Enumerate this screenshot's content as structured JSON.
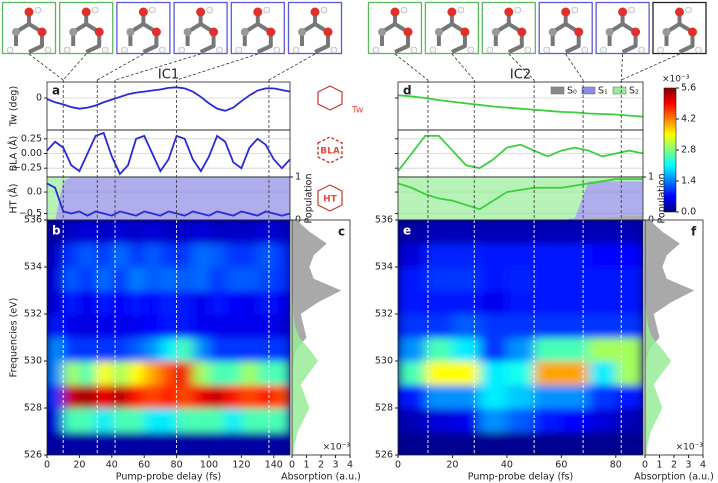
{
  "chart_data": [
    {
      "type": "line",
      "title": "IC1",
      "label": "a",
      "ylabel": "Tw (deg)",
      "snapshot_colors": [
        "#5cb85c",
        "#5cb85c",
        "#5b5bd6",
        "#5b5bd6",
        "#5b5bd6",
        "#5b5bd6"
      ],
      "x": [
        0,
        5,
        10,
        15,
        20,
        25,
        30,
        35,
        40,
        45,
        50,
        55,
        60,
        65,
        70,
        75,
        80,
        85,
        90,
        95,
        100,
        105,
        110,
        115,
        120,
        125,
        130,
        135,
        140,
        145,
        150
      ],
      "xlim": [
        0,
        150
      ],
      "ylim": [
        -60,
        30
      ],
      "yticks": [
        0
      ],
      "grid": true,
      "series": [
        {
          "color": "#2a2ad8",
          "values": [
            -2,
            -8,
            -12,
            -17,
            -20,
            -18,
            -14,
            -8,
            -3,
            2,
            7,
            10,
            12,
            14,
            16,
            19,
            20,
            18,
            12,
            2,
            -10,
            -20,
            -24,
            -18,
            -6,
            5,
            14,
            18,
            18,
            15,
            12
          ]
        }
      ]
    },
    {
      "type": "line",
      "ylabel": "BLA (Å)",
      "x": [
        0,
        5,
        10,
        15,
        20,
        25,
        30,
        35,
        40,
        45,
        50,
        55,
        60,
        65,
        70,
        75,
        80,
        85,
        90,
        95,
        100,
        105,
        110,
        115,
        120,
        125,
        130,
        135,
        140,
        145,
        150
      ],
      "xlim": [
        0,
        150
      ],
      "ylim": [
        -0.4,
        0.4
      ],
      "yticks": [
        0.25,
        {
          "value": 0,
          "label": "0.00"
        },
        {
          "value": -0.25,
          "label": "−0.25"
        }
      ],
      "grid": true,
      "series": [
        {
          "color": "#2a2ad8",
          "values": [
            0.05,
            0.2,
            0.1,
            -0.2,
            -0.3,
            0,
            0.3,
            0.35,
            -0.05,
            -0.35,
            -0.2,
            0.25,
            0.3,
            0,
            -0.3,
            -0.1,
            0.3,
            0.25,
            -0.1,
            -0.3,
            -0.05,
            0.3,
            0.2,
            -0.15,
            -0.25,
            0.1,
            0.25,
            0.15,
            -0.1,
            -0.25,
            -0.1
          ]
        }
      ]
    },
    {
      "type": "line",
      "ylabel": "HT (Å)",
      "y2label": "Population",
      "x": [
        0,
        5,
        10,
        15,
        20,
        25,
        30,
        35,
        40,
        45,
        50,
        55,
        60,
        65,
        70,
        75,
        80,
        85,
        90,
        95,
        100,
        105,
        110,
        115,
        120,
        125,
        130,
        135,
        140,
        145,
        150
      ],
      "xlim": [
        0,
        150
      ],
      "ylim": [
        -0.65,
        0.35
      ],
      "yticks": [
        {
          "value": 0,
          "label": "0.0"
        },
        {
          "value": -0.5,
          "label": "−0.5"
        }
      ],
      "y2lim": [
        0,
        1
      ],
      "y2ticks": [
        0,
        1
      ],
      "grid": true,
      "series": [
        {
          "color": "#2a2ad8",
          "values": [
            0.2,
            0.1,
            -0.45,
            -0.5,
            -0.45,
            -0.55,
            -0.45,
            -0.5,
            -0.55,
            -0.45,
            -0.5,
            -0.55,
            -0.45,
            -0.5,
            -0.55,
            -0.45,
            -0.5,
            -0.55,
            -0.45,
            -0.5,
            -0.55,
            -0.45,
            -0.5,
            -0.55,
            -0.45,
            -0.5,
            -0.55,
            -0.45,
            -0.5,
            -0.55,
            -0.5
          ]
        },
        {
          "color": "#8c8ce6",
          "axis": "y2",
          "values": [
            0,
            0,
            0.9,
            1,
            1,
            1,
            1,
            1,
            1,
            1,
            1,
            1,
            1,
            1,
            1,
            1,
            1,
            1,
            1,
            1,
            1,
            1,
            1,
            1,
            1,
            1,
            1,
            1,
            1,
            1,
            1
          ]
        },
        {
          "color": "#98ec98",
          "axis": "y2",
          "values": [
            1,
            1,
            0.1,
            0,
            0,
            0,
            0,
            0,
            0,
            0,
            0,
            0,
            0,
            0,
            0,
            0,
            0,
            0,
            0,
            0,
            0,
            0,
            0,
            0,
            0,
            0,
            0,
            0,
            0,
            0,
            0
          ]
        }
      ]
    },
    {
      "type": "heatmap",
      "label": "b",
      "ylabel": "Frequencies (eV)",
      "xlabel": "Pump-probe delay (fs)",
      "xlim": [
        0,
        150
      ],
      "xticks": [
        0,
        20,
        40,
        60,
        80,
        100,
        120,
        140
      ],
      "ylim": [
        526,
        536
      ],
      "yticks": [
        526,
        528,
        530,
        532,
        534,
        536
      ],
      "markers": [
        10,
        31,
        42,
        80,
        137
      ],
      "xbins": [
        0,
        10,
        20,
        30,
        40,
        50,
        60,
        70,
        80,
        90,
        100,
        110,
        120,
        130,
        140,
        150
      ],
      "ybins": [
        526,
        527,
        528,
        529,
        530,
        531,
        532,
        533,
        534,
        535,
        536
      ],
      "values": [
        [
          0.2,
          0.2,
          0.2,
          0.2,
          0.2,
          0.2,
          0.2,
          0.2,
          0.2,
          0.2,
          0.2,
          0.2,
          0.2,
          0.2,
          0.2
        ],
        [
          0.5,
          2.5,
          2.5,
          2,
          2.5,
          2.5,
          2,
          2,
          2.5,
          2.5,
          2.5,
          2,
          2.5,
          2.5,
          2.5
        ],
        [
          1,
          5.2,
          5.4,
          5,
          5.3,
          4.8,
          4.5,
          4.8,
          4.5,
          5,
          5.2,
          4.8,
          4.5,
          4.8,
          4.5
        ],
        [
          1.5,
          3,
          2.5,
          3.5,
          3,
          3.5,
          4,
          4.5,
          5,
          3,
          2.5,
          2.5,
          3,
          2.5,
          2.5
        ],
        [
          1.5,
          1,
          1,
          1,
          1,
          1.2,
          1.5,
          2,
          2.5,
          1.5,
          1,
          1,
          1,
          1,
          1
        ],
        [
          0.8,
          0.6,
          0.5,
          0.6,
          0.6,
          0.6,
          0.7,
          0.8,
          0.8,
          0.6,
          0.6,
          0.6,
          0.6,
          0.6,
          0.5
        ],
        [
          0.5,
          0.8,
          0.6,
          0.8,
          0.7,
          0.8,
          0.7,
          0.9,
          0.8,
          0.6,
          0.8,
          0.7,
          0.6,
          0.8,
          0.6
        ],
        [
          0.5,
          1.2,
          1,
          1.3,
          1,
          1.4,
          1.2,
          1.3,
          1.2,
          1.3,
          1,
          1.2,
          1.2,
          1.1,
          1
        ],
        [
          0.4,
          1,
          1.2,
          1,
          1.3,
          1,
          1.2,
          1,
          1,
          1.3,
          1.2,
          1,
          1,
          1.2,
          1
        ],
        [
          0.2,
          0.4,
          0.5,
          0.4,
          0.5,
          0.4,
          0.5,
          0.4,
          0.4,
          0.5,
          0.4,
          0.4,
          0.4,
          0.5,
          0.4
        ]
      ]
    },
    {
      "type": "area",
      "label": "c",
      "xlabel": "Absorption (a.u.)",
      "scale_label": "×10⁻³",
      "xlim": [
        0,
        4
      ],
      "xticks": [
        0,
        1,
        2,
        3,
        4
      ],
      "ylim": [
        526,
        536
      ],
      "y": [
        526,
        526.5,
        527,
        527.5,
        528,
        528.5,
        529,
        529.5,
        530,
        530.5,
        531,
        531.5,
        532,
        532.5,
        533,
        533.5,
        534,
        534.5,
        535,
        535.5,
        536
      ],
      "series": [
        {
          "color": "#9a9a9a",
          "values": [
            0,
            0,
            0,
            0,
            0,
            0,
            0,
            0,
            0.1,
            0.3,
            1,
            0.8,
            0.6,
            1.8,
            3.4,
            1.5,
            1.2,
            1.5,
            2.4,
            1.2,
            0.3
          ]
        },
        {
          "color": "#98ec98",
          "values": [
            0.1,
            0.2,
            0.4,
            0.8,
            1.2,
            0.9,
            0.6,
            1.2,
            1.8,
            1.2,
            0.5,
            0.2,
            0.1,
            0.05,
            0,
            0,
            0,
            0,
            0,
            0,
            0
          ]
        }
      ]
    },
    {
      "type": "line",
      "title": "IC2",
      "label": "d",
      "snapshot_colors": [
        "#5cb85c",
        "#5cb85c",
        "#5cb85c",
        "#5b5bd6",
        "#5b5bd6",
        "#222222"
      ],
      "x": [
        0,
        5,
        10,
        15,
        20,
        25,
        30,
        35,
        40,
        45,
        50,
        55,
        60,
        65,
        70,
        75,
        80,
        85,
        90
      ],
      "xlim": [
        0,
        90
      ],
      "ylim": [
        -60,
        30
      ],
      "yticks": [
        0
      ],
      "ytick_labels": false,
      "grid": true,
      "series": [
        {
          "color": "#3ccf3c",
          "values": [
            5,
            3,
            0,
            -4,
            -7,
            -10,
            -13,
            -16,
            -18,
            -20,
            -22,
            -24,
            -26,
            -27,
            -29,
            -30,
            -31,
            -33,
            -35
          ]
        }
      ]
    },
    {
      "type": "line",
      "x": [
        0,
        5,
        10,
        15,
        20,
        25,
        30,
        35,
        40,
        45,
        50,
        55,
        60,
        65,
        70,
        75,
        80,
        85,
        90
      ],
      "xlim": [
        0,
        90
      ],
      "ylim": [
        -0.4,
        0.4
      ],
      "yticks": [
        0.25,
        0,
        -0.25
      ],
      "ytick_labels": false,
      "grid": true,
      "series": [
        {
          "color": "#3ccf3c",
          "values": [
            -0.3,
            0,
            0.3,
            0.3,
            0.05,
            -0.2,
            -0.25,
            -0.1,
            0.1,
            0.15,
            0.05,
            -0.05,
            0.05,
            0.1,
            0.05,
            -0.05,
            0,
            0.05,
            0
          ]
        }
      ]
    },
    {
      "type": "line",
      "y2label": "Population",
      "legend": "upper right",
      "x": [
        0,
        5,
        10,
        15,
        20,
        25,
        30,
        35,
        40,
        45,
        50,
        55,
        60,
        65,
        70,
        75,
        80,
        85,
        90
      ],
      "xlim": [
        0,
        90
      ],
      "ylim": [
        -0.65,
        0.35
      ],
      "yticks": [
        0,
        -0.5
      ],
      "ytick_labels": false,
      "y2lim": [
        0,
        1
      ],
      "y2ticks": [
        0,
        1
      ],
      "grid": true,
      "series": [
        {
          "color": "#3ccf3c",
          "values": [
            0.2,
            0.1,
            -0.05,
            -0.15,
            -0.2,
            -0.3,
            -0.4,
            -0.2,
            0,
            0.05,
            0.1,
            0.1,
            0.1,
            0.15,
            0.2,
            0.25,
            0.3,
            0.3,
            0.3
          ]
        },
        {
          "name": "S₀",
          "color": "#8a8a8a",
          "axis": "y2",
          "values": [
            0,
            0,
            0,
            0,
            0,
            0,
            0,
            0,
            0,
            0,
            0,
            0,
            0,
            0,
            0.05,
            0.06,
            0.08,
            0.1,
            0.1
          ]
        },
        {
          "name": "S₁",
          "color": "#8c8ce6",
          "axis": "y2",
          "values": [
            0,
            0,
            0,
            0,
            0,
            0,
            0,
            0,
            0,
            0,
            0,
            0,
            0,
            0.05,
            0.85,
            0.84,
            0.82,
            0.8,
            0.8
          ]
        },
        {
          "name": "S₂",
          "color": "#98ec98",
          "axis": "y2",
          "values": [
            1,
            1,
            1,
            1,
            1,
            1,
            1,
            1,
            1,
            1,
            1,
            1,
            1,
            0.95,
            0.1,
            0.1,
            0.1,
            0.1,
            0.1
          ]
        }
      ]
    },
    {
      "type": "heatmap",
      "label": "e",
      "xlabel": "Pump-probe delay (fs)",
      "xlim": [
        0,
        90
      ],
      "xticks": [
        0,
        20,
        40,
        60,
        80
      ],
      "ylim": [
        526,
        536
      ],
      "yticks": [
        526,
        528,
        530,
        532,
        534,
        536
      ],
      "markers": [
        11,
        28,
        50,
        68,
        82
      ],
      "xbins": [
        0,
        10,
        20,
        30,
        40,
        50,
        60,
        70,
        80,
        90
      ],
      "ybins": [
        526,
        527,
        528,
        529,
        530,
        531,
        532,
        533,
        534,
        535,
        536
      ],
      "values": [
        [
          0.1,
          0.1,
          0.1,
          0.1,
          0.1,
          0.1,
          0.1,
          0.1,
          0.1
        ],
        [
          0.3,
          0.5,
          0.6,
          1.5,
          1.2,
          0.8,
          0.7,
          0.5,
          0.3
        ],
        [
          0.8,
          1.5,
          1.5,
          2,
          1.8,
          1.5,
          1.5,
          1,
          0.8
        ],
        [
          2.5,
          3.5,
          3.5,
          2,
          2.2,
          4,
          4,
          2,
          3
        ],
        [
          1.5,
          2.5,
          2,
          1,
          1.5,
          2.5,
          2.5,
          3,
          3
        ],
        [
          1,
          1,
          1.2,
          1,
          1,
          1,
          1,
          1,
          1
        ],
        [
          0.8,
          0.8,
          0.8,
          0.6,
          0.8,
          0.8,
          0.8,
          0.8,
          0.8
        ],
        [
          0.8,
          1,
          1,
          0.8,
          0.9,
          0.8,
          0.8,
          0.8,
          0.8
        ],
        [
          0.5,
          0.9,
          0.9,
          0.8,
          0.8,
          0.8,
          0.8,
          0.7,
          0.7
        ],
        [
          0.2,
          0.3,
          0.3,
          0.3,
          0.3,
          0.3,
          0.3,
          0.3,
          0.3
        ]
      ]
    },
    {
      "type": "area",
      "label": "f",
      "xlabel": "Absorption (a.u.)",
      "scale_label": "×10⁻³",
      "xlim": [
        0,
        4
      ],
      "xticks": [
        0,
        1,
        2,
        3,
        4
      ],
      "ylim": [
        526,
        536
      ],
      "y": [
        526,
        526.5,
        527,
        527.5,
        528,
        528.5,
        529,
        529.5,
        530,
        530.5,
        531,
        531.5,
        532,
        532.5,
        533,
        533.5,
        534,
        534.5,
        535,
        535.5,
        536
      ],
      "series": [
        {
          "color": "#9a9a9a",
          "values": [
            0,
            0,
            0,
            0,
            0,
            0,
            0,
            0,
            0.1,
            0.3,
            1,
            0.8,
            0.6,
            1.8,
            3.4,
            1.5,
            1.2,
            1.5,
            2.4,
            1.2,
            0.3
          ]
        },
        {
          "color": "#98ec98",
          "values": [
            0.1,
            0.2,
            0.4,
            0.8,
            1.2,
            0.9,
            0.6,
            1.2,
            1.8,
            1.2,
            0.5,
            0.2,
            0.1,
            0.05,
            0,
            0,
            0,
            0,
            0,
            0,
            0
          ]
        }
      ]
    },
    {
      "type": "colorbar",
      "scale_label": "×10⁻³",
      "lim": [
        0,
        5.6
      ],
      "ticks": [
        {
          "value": 0,
          "label": "0.0"
        },
        1.4,
        2.8,
        4.2,
        5.6
      ],
      "colors": [
        "#00007f",
        "#0000ff",
        "#007fff",
        "#00ffff",
        "#7fff7f",
        "#ffff00",
        "#ff7f00",
        "#ff0000",
        "#7f0000"
      ]
    }
  ],
  "icon_labels": [
    "Tw",
    "BLA",
    "HT"
  ]
}
